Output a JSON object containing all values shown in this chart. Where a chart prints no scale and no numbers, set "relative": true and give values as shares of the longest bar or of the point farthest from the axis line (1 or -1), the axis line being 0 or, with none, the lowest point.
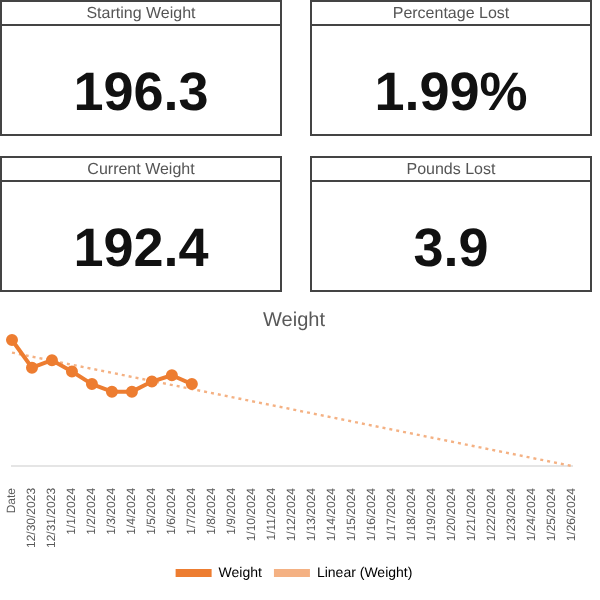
{
  "chart_data": [
    {
      "type": "other",
      "title": "Starting Weight",
      "annotations": [
        "196.3"
      ]
    },
    {
      "type": "other",
      "title": "Percentage Lost",
      "annotations": [
        "1.99%"
      ]
    },
    {
      "type": "other",
      "title": "Current Weight",
      "annotations": [
        "192.4"
      ]
    },
    {
      "type": "other",
      "title": "Pounds Lost",
      "annotations": [
        "3.9"
      ]
    },
    {
      "type": "line",
      "title": "Weight",
      "relative": true,
      "legend": "bottom",
      "marker": "circle",
      "tick_labels": "x",
      "categories": [
        "Date",
        "12/30/2023",
        "12/31/2023",
        "1/1/2024",
        "1/2/2024",
        "1/3/2024",
        "1/4/2024",
        "1/5/2024",
        "1/6/2024",
        "1/7/2024",
        "1/8/2024",
        "1/9/2024",
        "1/10/2024",
        "1/11/2024",
        "1/12/2024",
        "1/13/2024",
        "1/14/2024",
        "1/15/2024",
        "1/16/2024",
        "1/17/2024",
        "1/18/2024",
        "1/19/2024",
        "1/20/2024",
        "1/21/2024",
        "1/22/2024",
        "1/23/2024",
        "1/24/2024",
        "1/25/2024",
        "1/26/2024"
      ],
      "series": [
        {
          "name": "Weight",
          "color": "#ed7d31",
          "x": [
            "Date",
            "12/30/2023",
            "12/31/2023",
            "1/1/2024",
            "1/2/2024",
            "1/3/2024",
            "1/4/2024",
            "1/5/2024",
            "1/6/2024",
            "1/7/2024"
          ],
          "values": [
            1.0,
            0.78,
            0.84,
            0.75,
            0.65,
            0.59,
            0.59,
            0.67,
            0.72,
            0.65
          ]
        },
        {
          "name": "Linear (Weight)",
          "color": "#f4b183",
          "x": [
            "Date",
            "1/26/2024"
          ],
          "values": [
            0.9,
            0
          ],
          "line_style": "dotted",
          "marker": "none"
        }
      ]
    }
  ]
}
